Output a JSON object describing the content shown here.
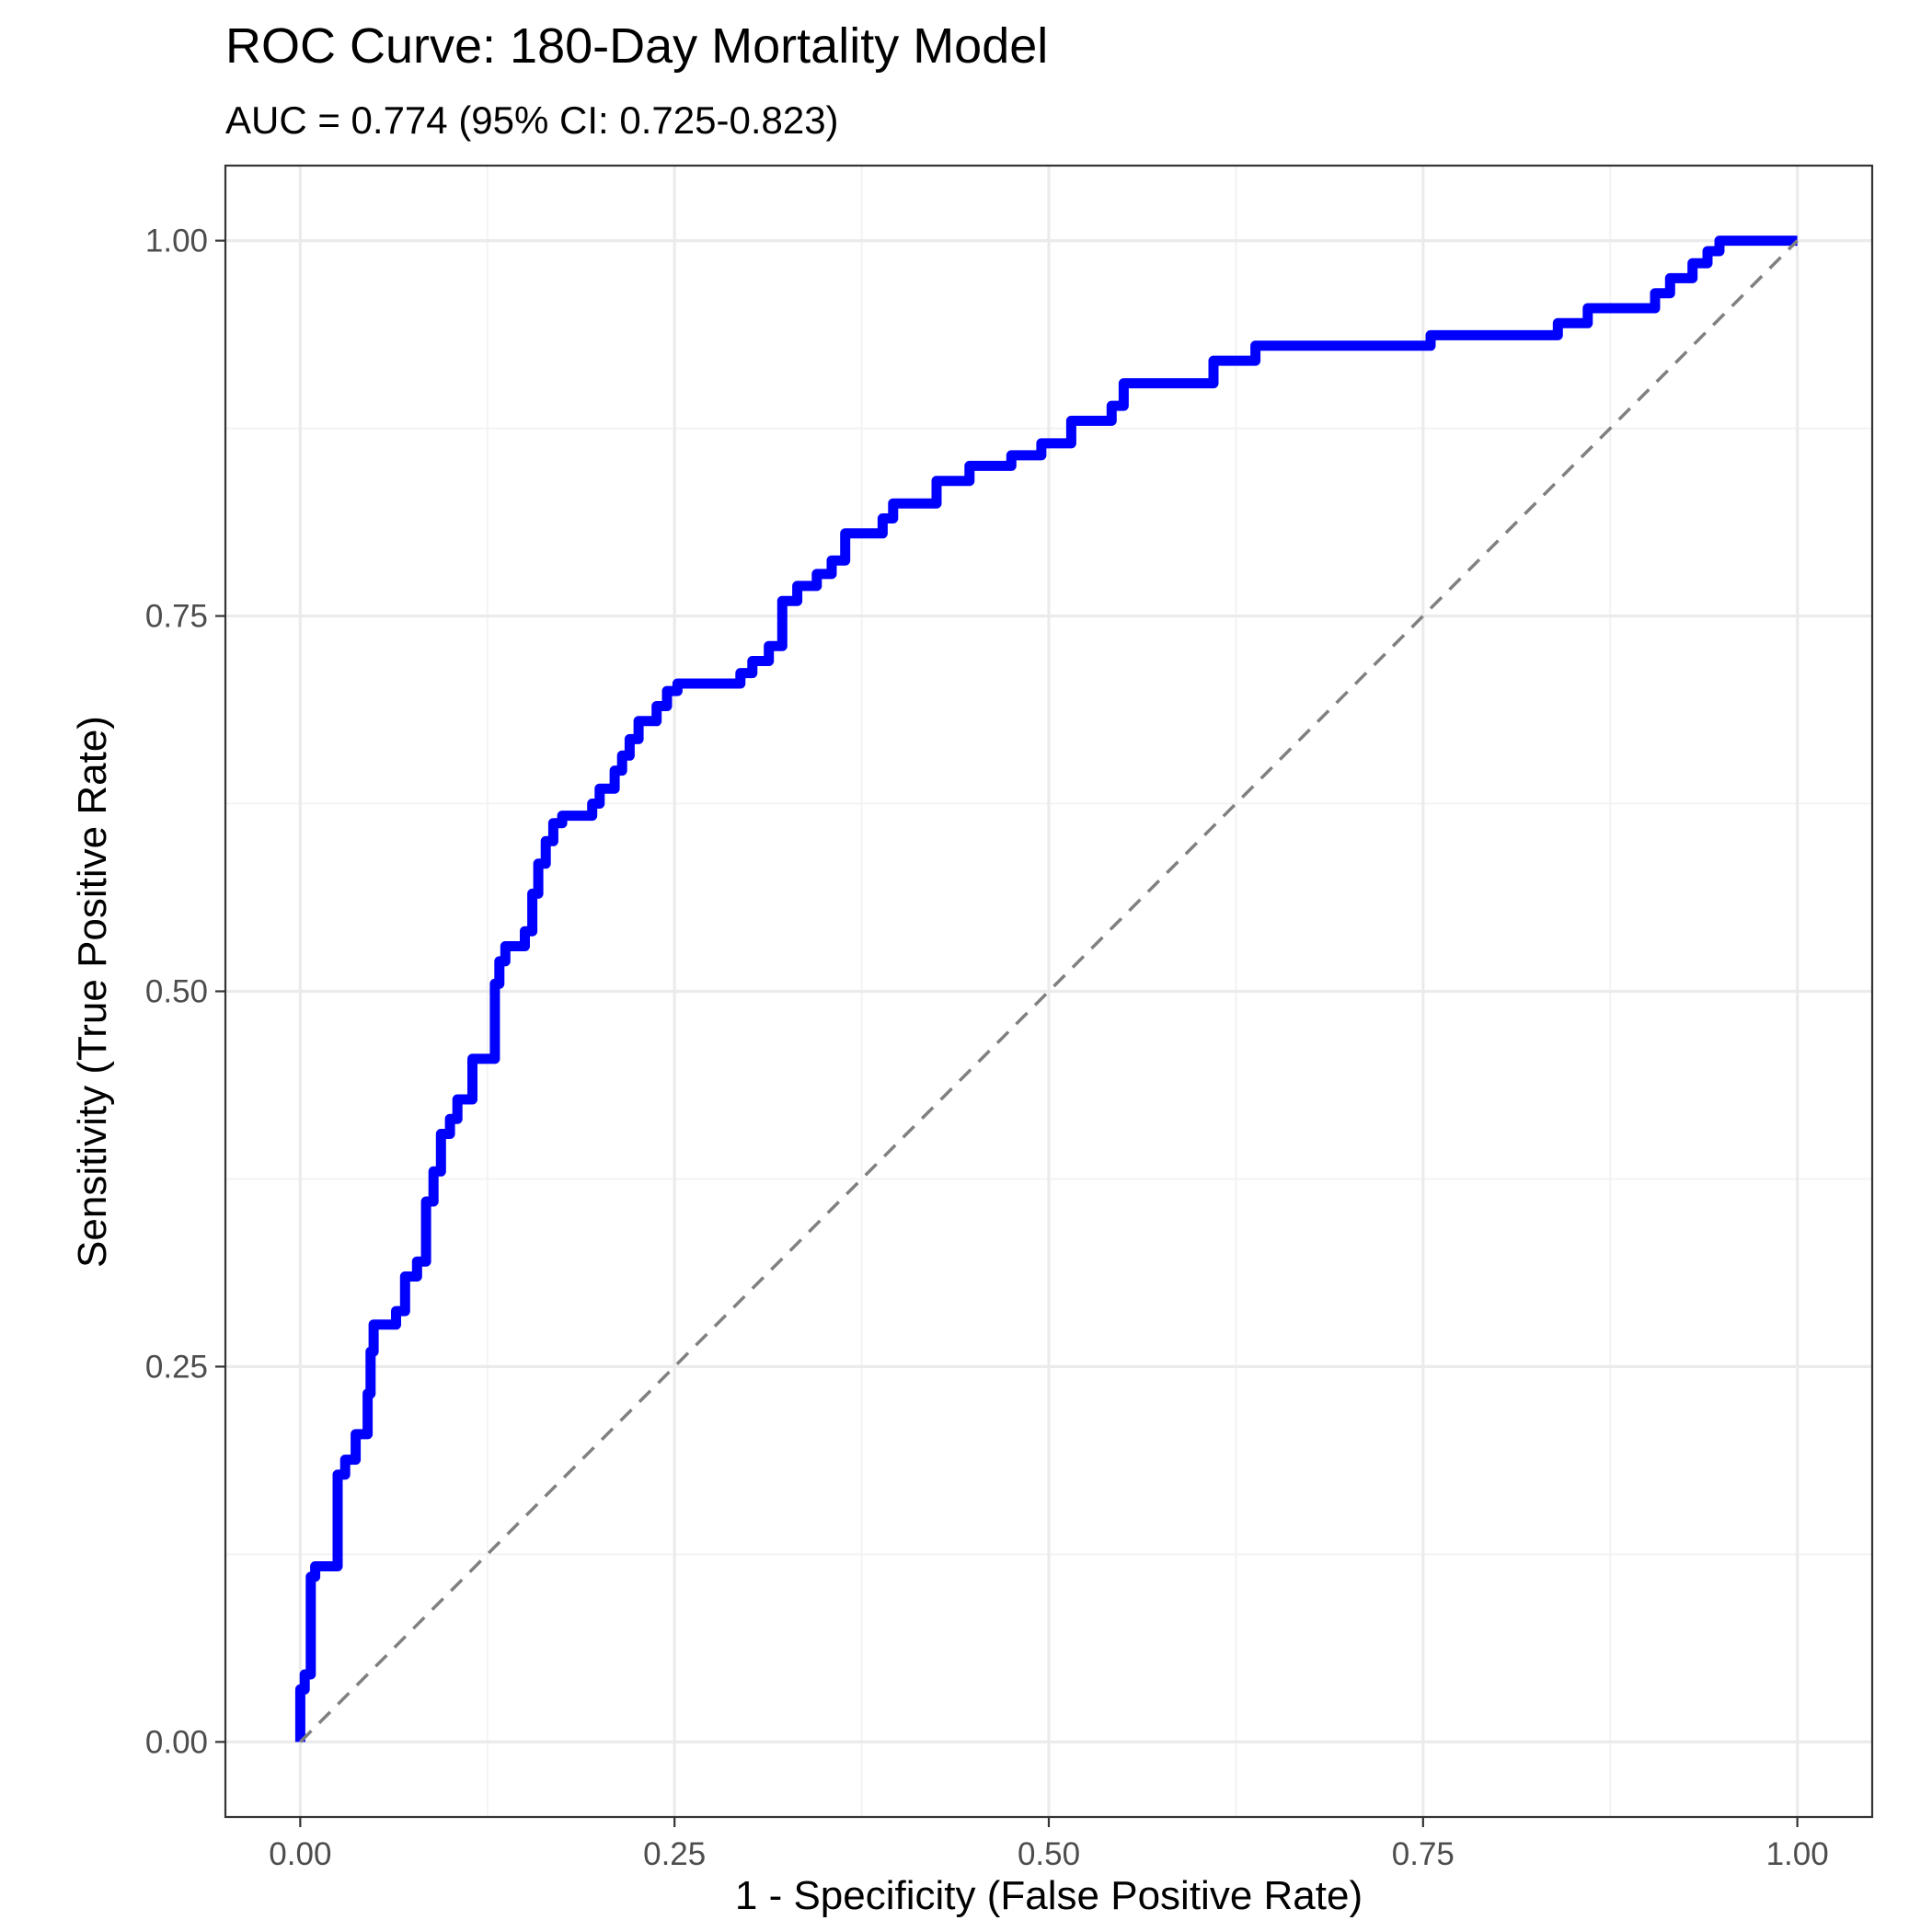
{
  "chart_data": {
    "type": "line",
    "title": "ROC Curve: 180-Day Mortality Model",
    "subtitle": "AUC = 0.774 (95% CI: 0.725-0.823)",
    "xlabel": "1 - Specificity (False Positive Rate)",
    "ylabel": "Sensitivity (True Positive Rate)",
    "xlim": [
      -0.05,
      1.05
    ],
    "ylim": [
      -0.05,
      1.05
    ],
    "x_ticks": [
      0.0,
      0.25,
      0.5,
      0.75,
      1.0
    ],
    "x_tick_labels": [
      "0.00",
      "0.25",
      "0.50",
      "0.75",
      "1.00"
    ],
    "y_ticks": [
      0.0,
      0.25,
      0.5,
      0.75,
      1.0
    ],
    "y_tick_labels": [
      "0.00",
      "0.25",
      "0.50",
      "0.75",
      "1.00"
    ],
    "grid": true,
    "colors": {
      "roc": "#0000ff",
      "reference": "#808080"
    },
    "series": [
      {
        "style": "solid",
        "x": [
          0.0,
          0.0,
          0.003,
          0.003,
          0.007,
          0.007,
          0.01,
          0.01,
          0.025,
          0.025,
          0.03,
          0.03,
          0.037,
          0.037,
          0.045,
          0.045,
          0.047,
          0.047,
          0.049,
          0.049,
          0.064,
          0.064,
          0.07,
          0.07,
          0.078,
          0.078,
          0.084,
          0.084,
          0.089,
          0.089,
          0.094,
          0.094,
          0.1,
          0.1,
          0.105,
          0.105,
          0.115,
          0.115,
          0.13,
          0.13,
          0.133,
          0.133,
          0.137,
          0.137,
          0.15,
          0.15,
          0.155,
          0.155,
          0.159,
          0.159,
          0.164,
          0.164,
          0.169,
          0.169,
          0.175,
          0.175,
          0.195,
          0.195,
          0.2,
          0.2,
          0.21,
          0.21,
          0.215,
          0.215,
          0.22,
          0.22,
          0.226,
          0.226,
          0.238,
          0.238,
          0.245,
          0.245,
          0.252,
          0.252,
          0.294,
          0.294,
          0.302,
          0.302,
          0.313,
          0.313,
          0.322,
          0.322,
          0.332,
          0.332,
          0.345,
          0.345,
          0.355,
          0.355,
          0.364,
          0.364,
          0.389,
          0.389,
          0.396,
          0.396,
          0.425,
          0.425,
          0.447,
          0.447,
          0.475,
          0.475,
          0.495,
          0.495,
          0.515,
          0.515,
          0.542,
          0.542,
          0.55,
          0.55,
          0.61,
          0.61,
          0.638,
          0.638,
          0.755,
          0.755,
          0.84,
          0.84,
          0.86,
          0.86,
          0.905,
          0.905,
          0.915,
          0.915,
          0.93,
          0.93,
          0.94,
          0.94,
          0.948,
          0.948,
          0.967,
          1.0
        ],
        "y": [
          0.0,
          0.035,
          0.035,
          0.045,
          0.045,
          0.11,
          0.11,
          0.117,
          0.117,
          0.178,
          0.178,
          0.188,
          0.188,
          0.205,
          0.205,
          0.232,
          0.232,
          0.26,
          0.26,
          0.278,
          0.278,
          0.287,
          0.287,
          0.31,
          0.31,
          0.32,
          0.32,
          0.36,
          0.36,
          0.38,
          0.38,
          0.405,
          0.405,
          0.415,
          0.415,
          0.428,
          0.428,
          0.455,
          0.455,
          0.505,
          0.505,
          0.52,
          0.52,
          0.53,
          0.53,
          0.54,
          0.54,
          0.565,
          0.565,
          0.585,
          0.585,
          0.6,
          0.6,
          0.612,
          0.612,
          0.617,
          0.617,
          0.625,
          0.625,
          0.635,
          0.635,
          0.647,
          0.647,
          0.657,
          0.657,
          0.668,
          0.668,
          0.68,
          0.68,
          0.69,
          0.69,
          0.7,
          0.7,
          0.705,
          0.705,
          0.712,
          0.712,
          0.72,
          0.72,
          0.73,
          0.73,
          0.76,
          0.76,
          0.77,
          0.77,
          0.778,
          0.778,
          0.787,
          0.787,
          0.805,
          0.805,
          0.815,
          0.815,
          0.825,
          0.825,
          0.84,
          0.84,
          0.85,
          0.85,
          0.857,
          0.857,
          0.865,
          0.865,
          0.88,
          0.88,
          0.89,
          0.89,
          0.905,
          0.905,
          0.92,
          0.92,
          0.93,
          0.93,
          0.937,
          0.937,
          0.945,
          0.945,
          0.955,
          0.955,
          0.965,
          0.965,
          0.975,
          0.975,
          0.985,
          0.985,
          0.993,
          0.993,
          1.0,
          1.0,
          1.0
        ]
      },
      {
        "style": "dashed",
        "x": [
          0.0,
          1.0
        ],
        "y": [
          0.0,
          1.0
        ]
      }
    ]
  }
}
